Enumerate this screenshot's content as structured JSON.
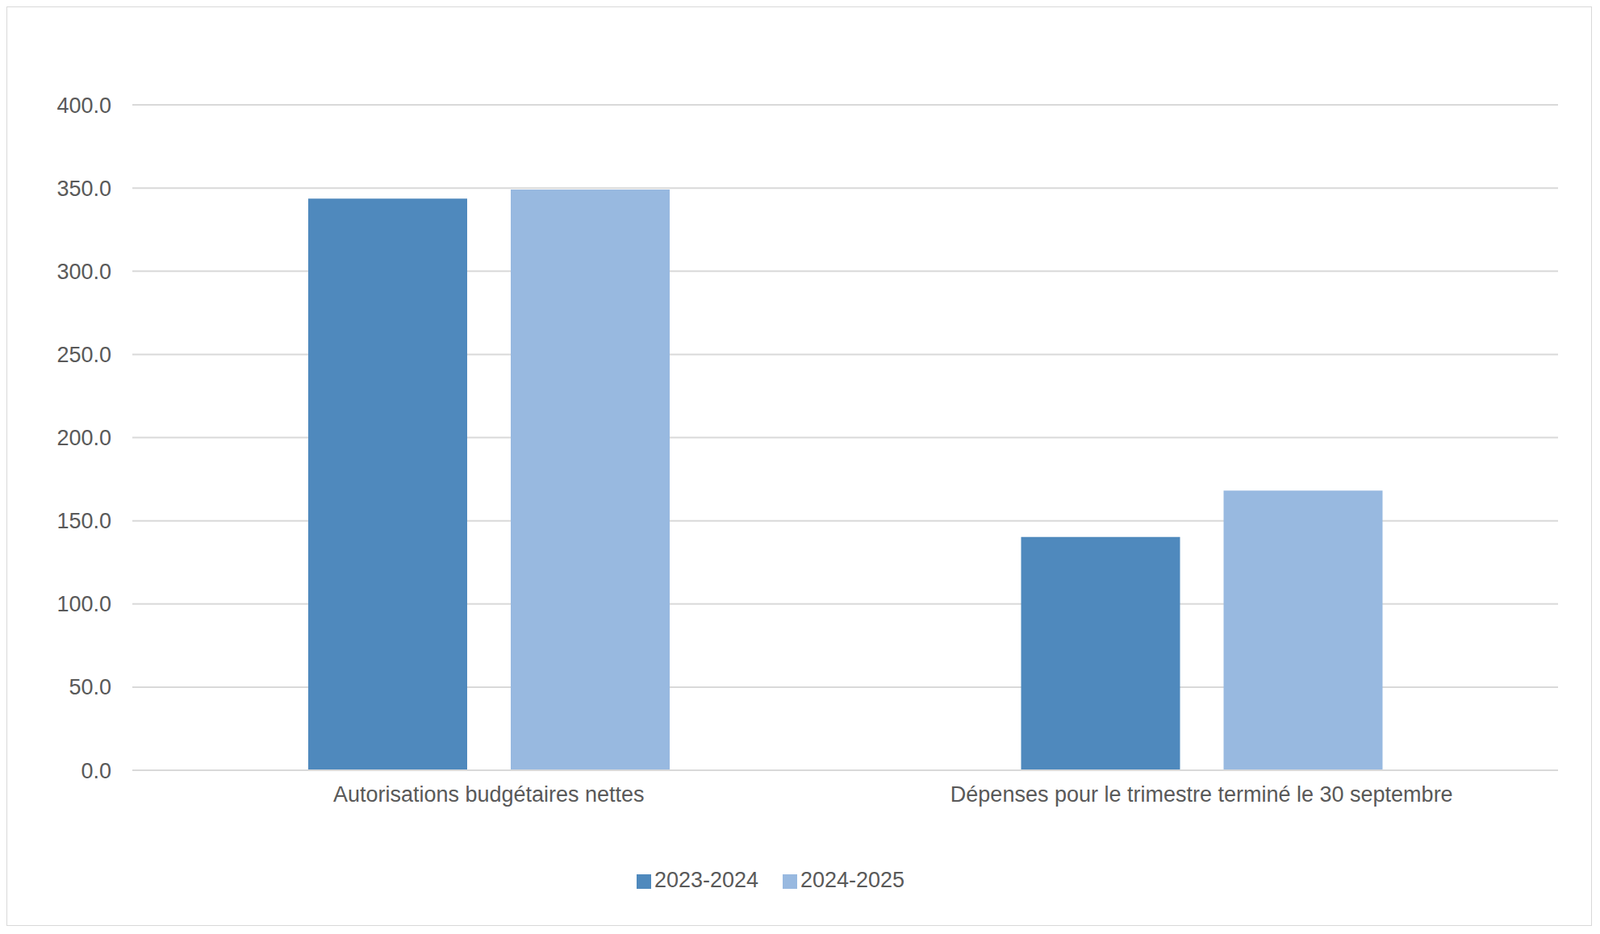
{
  "chart_data": {
    "type": "bar",
    "categories": [
      "Autorisations budgétaires nettes",
      "Dépenses pour le trimestre terminé le 30 septembre"
    ],
    "series": [
      {
        "name": "2023-2024",
        "color": "#4f89bd",
        "values": [
          343.6,
          140.2
        ]
      },
      {
        "name": "2024-2025",
        "color": "#98b9e0",
        "values": [
          349.1,
          168.1
        ]
      }
    ],
    "ylim": [
      0,
      400
    ],
    "yticks": [
      {
        "value": 0,
        "label": "0.0"
      },
      {
        "value": 50,
        "label": "50.0"
      },
      {
        "value": 100,
        "label": "100.0"
      },
      {
        "value": 150,
        "label": "150.0"
      },
      {
        "value": 200,
        "label": "200.0"
      },
      {
        "value": 250,
        "label": "250.0"
      },
      {
        "value": 300,
        "label": "300.0"
      },
      {
        "value": 350,
        "label": "350.0"
      },
      {
        "value": 400,
        "label": "400.0"
      }
    ],
    "grid": true,
    "legend": "bottom"
  }
}
